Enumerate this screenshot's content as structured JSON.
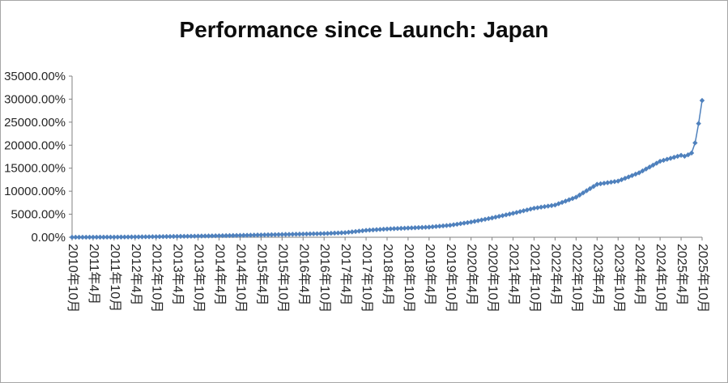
{
  "chart_data": {
    "type": "line",
    "title": "Performance since Launch: Japan",
    "xlabel": "",
    "ylabel": "",
    "legend": "none",
    "grid": false,
    "ylim": [
      0,
      35000
    ],
    "y_tick_step": 5000,
    "y_tick_labels": [
      "0.00%",
      "5000.00%",
      "10000.00%",
      "15000.00%",
      "20000.00%",
      "25000.00%",
      "30000.00%",
      "35000.00%"
    ],
    "x_tick_every_n_points": 6,
    "x_tick_labels": [
      "2010年10月",
      "2011年4月",
      "2011年10月",
      "2012年4月",
      "2012年10月",
      "2013年4月",
      "2013年10月",
      "2014年4月",
      "2014年10月",
      "2015年4月",
      "2015年10月",
      "2016年4月",
      "2016年10月",
      "2017年4月",
      "2017年10月",
      "2018年4月",
      "2018年10月",
      "2019年4月",
      "2019年10月",
      "2020年4月",
      "2020年10月",
      "2021年4月",
      "2021年10月",
      "2022年4月",
      "2022年10月",
      "2023年4月",
      "2023年10月",
      "2024年4月",
      "2024年10月",
      "2025年4月",
      "2025年10月"
    ],
    "x_frequency": "monthly",
    "series_color": "#4F81BD",
    "marker_color": "#4F81BD",
    "marker_shape": "diamond",
    "axis_color": "#808080",
    "label_color": "#262626",
    "values": [
      0,
      3,
      5,
      8,
      10,
      13,
      15,
      18,
      20,
      23,
      25,
      28,
      30,
      38,
      45,
      53,
      60,
      68,
      75,
      83,
      90,
      98,
      105,
      113,
      120,
      131,
      142,
      153,
      163,
      174,
      185,
      196,
      207,
      217,
      228,
      239,
      250,
      263,
      275,
      288,
      300,
      313,
      325,
      338,
      350,
      363,
      375,
      388,
      400,
      417,
      433,
      450,
      467,
      483,
      500,
      517,
      533,
      550,
      567,
      583,
      600,
      617,
      633,
      650,
      667,
      683,
      700,
      717,
      733,
      750,
      767,
      783,
      800,
      833,
      867,
      900,
      933,
      967,
      1000,
      1083,
      1167,
      1250,
      1333,
      1417,
      1500,
      1550,
      1600,
      1650,
      1700,
      1750,
      1800,
      1833,
      1867,
      1900,
      1933,
      1967,
      2000,
      2033,
      2067,
      2100,
      2133,
      2167,
      2200,
      2267,
      2333,
      2400,
      2467,
      2533,
      2600,
      2717,
      2833,
      2950,
      3067,
      3183,
      3300,
      3450,
      3600,
      3750,
      3900,
      4050,
      4200,
      4367,
      4533,
      4700,
      4867,
      5033,
      5200,
      5383,
      5567,
      5750,
      5933,
      6117,
      6300,
      6417,
      6533,
      6650,
      6767,
      6883,
      7000,
      7283,
      7567,
      7850,
      8133,
      8417,
      8700,
      9167,
      9633,
      10100,
      10567,
      11033,
      11500,
      11617,
      11733,
      11850,
      11967,
      12083,
      12200,
      12500,
      12800,
      13100,
      13400,
      13700,
      14000,
      14417,
      14833,
      15250,
      15667,
      16083,
      16500,
      16717,
      16933,
      17150,
      17367,
      17583,
      17800,
      17600,
      17900,
      18300,
      20500,
      24700,
      29700
    ]
  }
}
